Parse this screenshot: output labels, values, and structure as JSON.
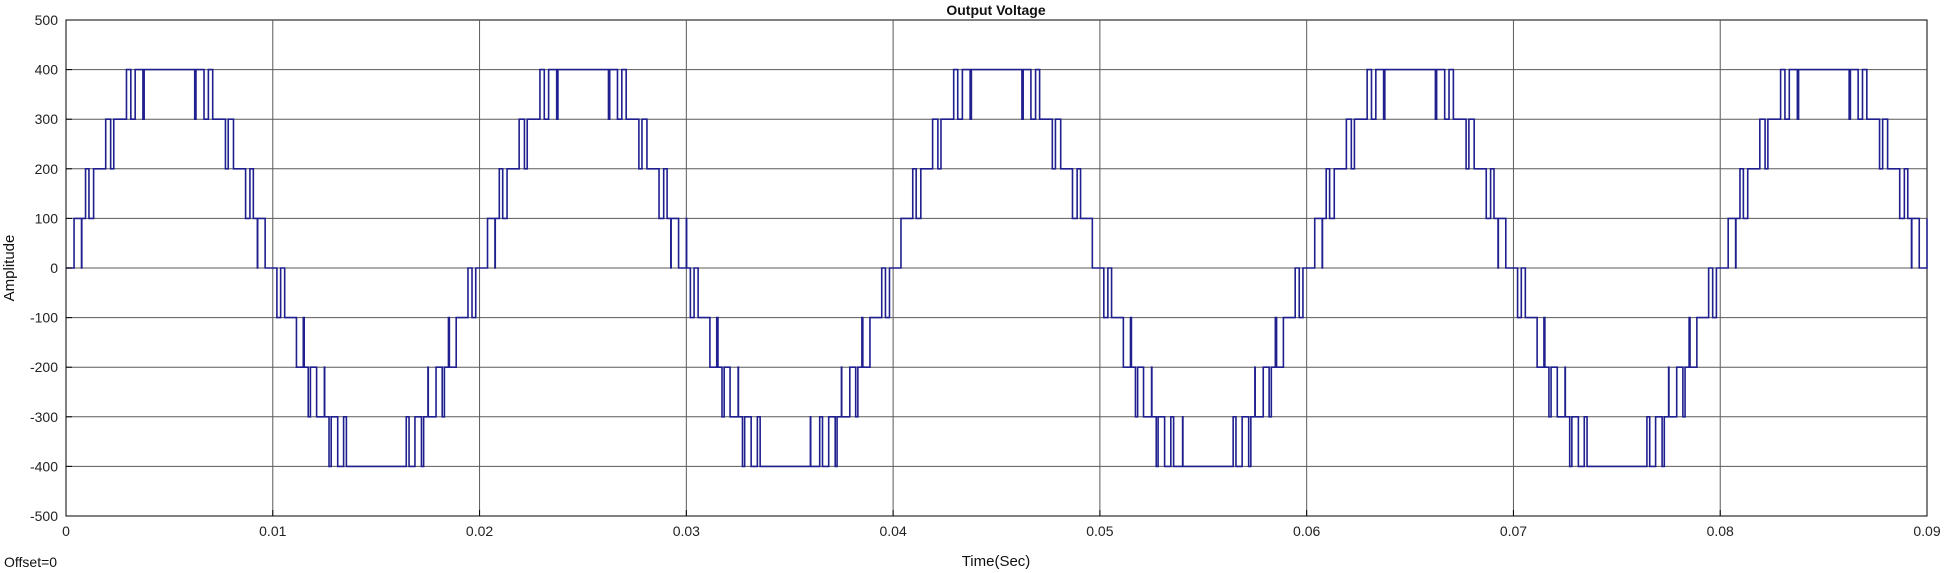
{
  "chart_data": {
    "type": "line",
    "title": "Output Voltage",
    "xlabel": "Time(Sec)",
    "ylabel": "Amplitude",
    "xlim": [
      0,
      0.09
    ],
    "ylim": [
      -500,
      500
    ],
    "xticks": [
      "0",
      "0.01",
      "0.02",
      "0.03",
      "0.04",
      "0.05",
      "0.06",
      "0.07",
      "0.08",
      "0.09"
    ],
    "yticks": [
      "500",
      "400",
      "300",
      "200",
      "100",
      "0",
      "-100",
      "-200",
      "-300",
      "-400",
      "-500"
    ],
    "grid": true,
    "footnote": "Offset=0",
    "line_color": "#1f1f8f",
    "series": [
      {
        "frequency_hz": 50,
        "level_step": 100,
        "levels": 9,
        "amplitude": 400,
        "style": "multilevel staircase with PWM switching at level transitions",
        "x": [
          0,
          0.0025,
          0.005,
          0.0075,
          0.01,
          0.0125,
          0.015,
          0.0175,
          0.02
        ],
        "y": [
          0,
          300,
          400,
          300,
          0,
          -300,
          -400,
          -300,
          0
        ]
      }
    ]
  }
}
